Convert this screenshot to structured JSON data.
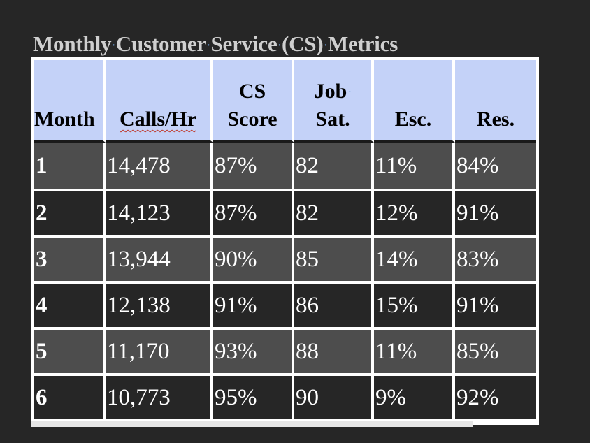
{
  "document": {
    "title_words": [
      "Monthly",
      "Customer",
      "Service",
      "(CS)",
      "Metrics"
    ]
  },
  "table": {
    "headers": [
      {
        "lines": [
          "Month"
        ]
      },
      {
        "lines": [
          "Calls/Hr"
        ]
      },
      {
        "lines": [
          "CS",
          "Score"
        ]
      },
      {
        "lines": [
          "Job",
          "Sat."
        ]
      },
      {
        "lines": [
          "Esc."
        ]
      },
      {
        "lines": [
          "Res."
        ]
      }
    ],
    "rows": [
      [
        "1",
        "14,478",
        "87%",
        "82",
        "11%",
        "84%"
      ],
      [
        "2",
        "14,123",
        "87%",
        "82",
        "12%",
        "91%"
      ],
      [
        "3",
        "13,944",
        "90%",
        "85",
        "14%",
        "83%"
      ],
      [
        "4",
        "12,138",
        "91%",
        "86",
        "15%",
        "91%"
      ],
      [
        "5",
        "11,170",
        "93%",
        "88",
        "11%",
        "85%"
      ],
      [
        "6",
        "10,773",
        "95%",
        "90",
        "9%",
        "92%"
      ]
    ]
  }
}
